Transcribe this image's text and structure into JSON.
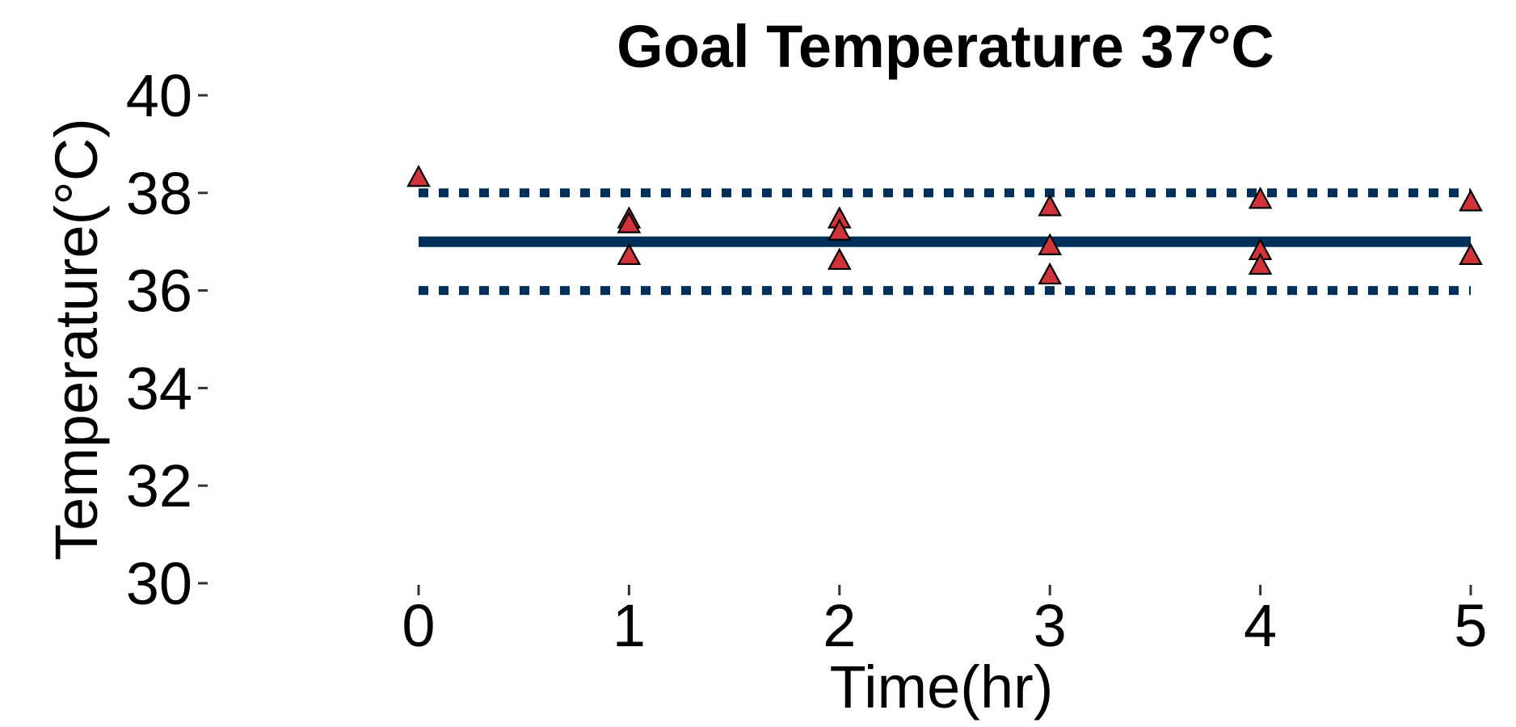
{
  "chart_data": {
    "type": "scatter",
    "title": "Goal Temperature 37°C",
    "xlabel": "Time(hr)",
    "ylabel": "Temperature(°C)",
    "xlim": [
      0,
      5
    ],
    "ylim": [
      30,
      40
    ],
    "x_ticks": [
      "0",
      "1",
      "2",
      "3",
      "4",
      "5"
    ],
    "y_ticks": [
      "30",
      "32",
      "34",
      "36",
      "38",
      "40"
    ],
    "grid": false,
    "legend": "none",
    "reference_lines": [
      {
        "y": 37,
        "style": "solid",
        "color": "#00305A"
      },
      {
        "y": 38,
        "style": "dotted",
        "color": "#00305A"
      },
      {
        "y": 36,
        "style": "dotted",
        "color": "#00305A"
      }
    ],
    "series": [
      {
        "marker": "triangle",
        "color": "#D0343A",
        "points": [
          {
            "x": 0,
            "y": 38.3
          },
          {
            "x": 1,
            "y": 37.45
          },
          {
            "x": 1,
            "y": 37.35
          },
          {
            "x": 1,
            "y": 36.7
          },
          {
            "x": 2,
            "y": 37.45
          },
          {
            "x": 2,
            "y": 37.2
          },
          {
            "x": 2,
            "y": 36.6
          },
          {
            "x": 3,
            "y": 37.7
          },
          {
            "x": 3,
            "y": 36.9
          },
          {
            "x": 3,
            "y": 36.3
          },
          {
            "x": 4,
            "y": 37.85
          },
          {
            "x": 4,
            "y": 36.8
          },
          {
            "x": 4,
            "y": 36.5
          },
          {
            "x": 5,
            "y": 37.8
          },
          {
            "x": 5,
            "y": 36.7
          }
        ]
      }
    ]
  }
}
